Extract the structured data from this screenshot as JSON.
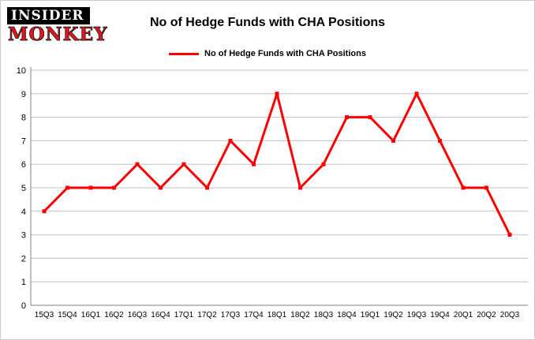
{
  "logo": {
    "line1": "INSIDER",
    "line2": "MONKEY"
  },
  "title": "No of Hedge Funds with CHA Positions",
  "legend": {
    "label": "No of Hedge Funds with CHA Positions"
  },
  "colors": {
    "line": "#fe0000",
    "grid": "#c0c0c0",
    "axis": "#808080",
    "tick_text": "#000000",
    "logo_black": "#000000",
    "logo_red": "#e8131d"
  },
  "chart_data": {
    "type": "line",
    "title": "No of Hedge Funds with CHA Positions",
    "categories": [
      "15Q3",
      "15Q4",
      "16Q1",
      "16Q2",
      "16Q3",
      "16Q4",
      "17Q1",
      "17Q2",
      "17Q3",
      "17Q4",
      "18Q1",
      "18Q2",
      "18Q3",
      "18Q4",
      "19Q1",
      "19Q2",
      "19Q3",
      "19Q4",
      "20Q1",
      "20Q2",
      "20Q3"
    ],
    "values": [
      4,
      5,
      5,
      5,
      6,
      5,
      6,
      5,
      7,
      6,
      9,
      5,
      6,
      8,
      8,
      7,
      9,
      7,
      5,
      5,
      3
    ],
    "xlabel": "",
    "ylabel": "",
    "ylim": [
      0,
      10
    ],
    "yticks": [
      0,
      1,
      2,
      3,
      4,
      5,
      6,
      7,
      8,
      9,
      10
    ],
    "grid": true,
    "legend_position": "top",
    "series_name": "No of Hedge Funds with CHA Positions"
  }
}
